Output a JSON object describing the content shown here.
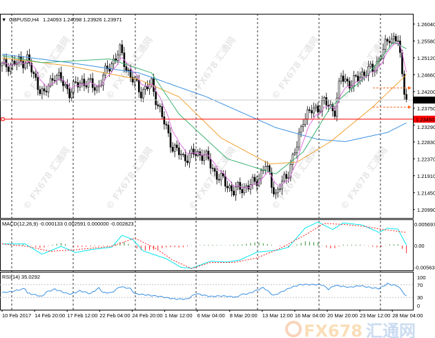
{
  "header": {
    "symbol": "GBPUSD,H4",
    "ohlc": "1.24093 1.24098 1.23926 1.23971"
  },
  "watermark": "© FX678 汇通网",
  "logo": {
    "text": "FX678",
    "cn": "汇通网"
  },
  "colors": {
    "ma_slow": "#3a8fe0",
    "ma_mid": "#f0a030",
    "ma_fast": "#3cb371",
    "ma_fastest": "#e070e0",
    "support_line": "#ff0000",
    "macd_main": "#00e5ee",
    "macd_signal": "#ff2020",
    "hist_up": "#2e8b2e",
    "hist_down": "#ff2020",
    "rsi": "#3a8fe0",
    "current_price_bg": "#000000",
    "level_bg": "#ff0000"
  },
  "chart_data": [
    {
      "type": "candlestick",
      "title": "GBPUSD,H4",
      "x_unit": "bar",
      "ylim": [
        1.2076,
        1.2632
      ],
      "price_ticks": [
        "1.26040",
        "1.25580",
        "1.25120",
        "1.24660",
        "1.24200",
        "1.23750",
        "1.23290",
        "1.22830",
        "1.22370",
        "1.21910",
        "1.21450",
        "1.20990"
      ],
      "current_price": "1.23971",
      "level_price": "1.23450",
      "level_value": 1.2345,
      "current_value": 1.23971,
      "close_path": [
        [
          0,
          1.249
        ],
        [
          9,
          1.25
        ],
        [
          12,
          1.251
        ],
        [
          15,
          1.246
        ],
        [
          20,
          1.241
        ],
        [
          25,
          1.247
        ],
        [
          32,
          1.242
        ],
        [
          38,
          1.245
        ],
        [
          45,
          1.243
        ],
        [
          51,
          1.249
        ],
        [
          56,
          1.253
        ],
        [
          61,
          1.246
        ],
        [
          66,
          1.242
        ],
        [
          71,
          1.244
        ],
        [
          76,
          1.235
        ],
        [
          81,
          1.227
        ],
        [
          86,
          1.224
        ],
        [
          91,
          1.225
        ],
        [
          96,
          1.225
        ],
        [
          101,
          1.22
        ],
        [
          106,
          1.217
        ],
        [
          110,
          1.215
        ],
        [
          115,
          1.216
        ],
        [
          120,
          1.217
        ],
        [
          125,
          1.222
        ],
        [
          130,
          1.214
        ],
        [
          135,
          1.219
        ],
        [
          140,
          1.227
        ],
        [
          143,
          1.235
        ],
        [
          148,
          1.237
        ],
        [
          153,
          1.239
        ],
        [
          158,
          1.237
        ],
        [
          161,
          1.246
        ],
        [
          166,
          1.244
        ],
        [
          171,
          1.247
        ],
        [
          176,
          1.248
        ],
        [
          181,
          1.253
        ],
        [
          184,
          1.257
        ],
        [
          188,
          1.256
        ],
        [
          190,
          1.246
        ],
        [
          192,
          1.2397
        ]
      ],
      "ma_slow": [
        [
          0,
          1.2522
        ],
        [
          32,
          1.2499
        ],
        [
          65,
          1.2471
        ],
        [
          97,
          1.2406
        ],
        [
          130,
          1.2322
        ],
        [
          150,
          1.229
        ],
        [
          163,
          1.2284
        ],
        [
          183,
          1.2309
        ],
        [
          192,
          1.2335
        ]
      ],
      "ma_mid": [
        [
          0,
          1.2512
        ],
        [
          32,
          1.249
        ],
        [
          65,
          1.2453
        ],
        [
          84,
          1.2406
        ],
        [
          104,
          1.2294
        ],
        [
          127,
          1.2223
        ],
        [
          140,
          1.2228
        ],
        [
          156,
          1.2284
        ],
        [
          176,
          1.2378
        ],
        [
          192,
          1.2466
        ]
      ],
      "ma_fast": [
        [
          0,
          1.2518
        ],
        [
          19,
          1.2499
        ],
        [
          51,
          1.2509
        ],
        [
          71,
          1.2471
        ],
        [
          84,
          1.2359
        ],
        [
          107,
          1.2237
        ],
        [
          130,
          1.2196
        ],
        [
          143,
          1.2256
        ],
        [
          156,
          1.2378
        ],
        [
          173,
          1.2462
        ],
        [
          186,
          1.2555
        ],
        [
          192,
          1.2537
        ]
      ],
      "price_markers": [
        1.243,
        1.2378
      ],
      "time_labels": [
        "10 Feb 2017",
        "14 Feb 20:00",
        "17 Feb 12:00",
        "22 Feb 04:00",
        "24 Feb 20:00",
        "1 Mar 12:00",
        "6 Mar 04:00",
        "8 Mar 20:00",
        "13 Mar 12:00",
        "16 Mar 04:00",
        "20 Mar 20:00",
        "23 Mar 12:00",
        "28 Mar 04:00"
      ]
    },
    {
      "type": "line",
      "title": "MACD(12,26,9) -0.000133 0.002591 0.000000 -0.002823",
      "ylim": [
        -0.0062,
        0.0062
      ],
      "ticks": [
        "0.005697",
        "0.00",
        "-0.005639"
      ],
      "main": [
        [
          0,
          0.0004
        ],
        [
          11,
          0.0004
        ],
        [
          19,
          -0.0021
        ],
        [
          28,
          -0.0002
        ],
        [
          35,
          -0.0017
        ],
        [
          42,
          -0.001
        ],
        [
          52,
          -0.0004
        ],
        [
          57,
          0.0025
        ],
        [
          62,
          0.0015
        ],
        [
          67,
          -0.0013
        ],
        [
          78,
          -0.0032
        ],
        [
          85,
          -0.0053
        ],
        [
          90,
          -0.0055
        ],
        [
          99,
          -0.0038
        ],
        [
          107,
          -0.004
        ],
        [
          113,
          -0.0035
        ],
        [
          121,
          -0.0016
        ],
        [
          131,
          -0.0011
        ],
        [
          136,
          -0.0004
        ],
        [
          144,
          0.0043
        ],
        [
          150,
          0.0057
        ],
        [
          157,
          0.0039
        ],
        [
          162,
          0.0055
        ],
        [
          171,
          0.005
        ],
        [
          179,
          0.0032
        ],
        [
          183,
          0.0042
        ],
        [
          188,
          0.004
        ],
        [
          192,
          0.0001
        ]
      ],
      "signal": [
        [
          0,
          0.0004
        ],
        [
          12,
          -0.0002
        ],
        [
          23,
          -0.0014
        ],
        [
          35,
          -0.001
        ],
        [
          52,
          -0.0002
        ],
        [
          63,
          0.0018
        ],
        [
          73,
          -0.0007
        ],
        [
          81,
          -0.0035
        ],
        [
          90,
          -0.0056
        ],
        [
          99,
          -0.0041
        ],
        [
          110,
          -0.0041
        ],
        [
          121,
          -0.003
        ],
        [
          132,
          -0.0007
        ],
        [
          144,
          0.0026
        ],
        [
          153,
          0.0054
        ],
        [
          163,
          0.0051
        ],
        [
          173,
          0.0046
        ],
        [
          181,
          0.0039
        ],
        [
          192,
          0.0032
        ]
      ]
    },
    {
      "type": "line",
      "title": "RSI(14) 35.0292",
      "ylim": [
        0,
        100
      ],
      "ticks": [
        "100",
        "70",
        "30",
        "0"
      ],
      "levels": [
        70,
        30
      ],
      "values": [
        [
          0,
          45
        ],
        [
          4,
          48
        ],
        [
          11,
          58
        ],
        [
          12,
          44
        ],
        [
          19,
          33
        ],
        [
          21,
          47
        ],
        [
          25,
          56
        ],
        [
          31,
          42
        ],
        [
          33,
          41
        ],
        [
          37,
          51
        ],
        [
          42,
          42
        ],
        [
          46,
          60
        ],
        [
          48,
          45
        ],
        [
          52,
          45
        ],
        [
          56,
          64
        ],
        [
          61,
          58
        ],
        [
          63,
          42
        ],
        [
          75,
          33
        ],
        [
          82,
          25
        ],
        [
          88,
          25
        ],
        [
          92,
          42
        ],
        [
          99,
          33
        ],
        [
          104,
          35
        ],
        [
          112,
          31
        ],
        [
          113,
          39
        ],
        [
          117,
          42
        ],
        [
          124,
          61
        ],
        [
          129,
          36
        ],
        [
          137,
          61
        ],
        [
          142,
          71
        ],
        [
          152,
          70
        ],
        [
          155,
          56
        ],
        [
          158,
          68
        ],
        [
          165,
          62
        ],
        [
          170,
          67
        ],
        [
          175,
          61
        ],
        [
          179,
          58
        ],
        [
          183,
          73
        ],
        [
          188,
          66
        ],
        [
          192,
          33
        ]
      ]
    }
  ]
}
